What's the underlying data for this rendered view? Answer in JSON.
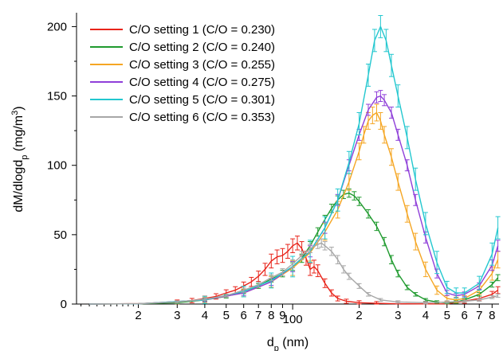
{
  "chart_data": {
    "type": "line",
    "x_scale": "log",
    "xlabel": {
      "main": "d",
      "sub": "p",
      "rest": " (nm)"
    },
    "ylabel": {
      "main": "dM/dlogd",
      "sub": "p",
      "mid": " (mg/m",
      "sup": "3",
      "end": ")"
    },
    "xlim": [
      10.5,
      860
    ],
    "ylim": [
      0,
      210
    ],
    "y_ticks": [
      0,
      50,
      100,
      150,
      200
    ],
    "x_ticks": [
      {
        "v": 20,
        "label": "2"
      },
      {
        "v": 30,
        "label": "3"
      },
      {
        "v": 40,
        "label": "4"
      },
      {
        "v": 50,
        "label": "5"
      },
      {
        "v": 60,
        "label": "6"
      },
      {
        "v": 70,
        "label": "7"
      },
      {
        "v": 80,
        "label": "8"
      },
      {
        "v": 90,
        "label": "9"
      },
      {
        "v": 100,
        "label": "100"
      },
      {
        "v": 200,
        "label": "2"
      },
      {
        "v": 300,
        "label": "3"
      },
      {
        "v": 400,
        "label": "4"
      },
      {
        "v": 500,
        "label": "5"
      },
      {
        "v": 600,
        "label": "6"
      },
      {
        "v": 700,
        "label": "7"
      },
      {
        "v": 800,
        "label": "8"
      }
    ],
    "legend_position": "top-left",
    "series": [
      {
        "name": "C/O setting 1 (C/O = 0.230)",
        "color": "#e8241a",
        "points": [
          [
            12,
            0
          ],
          [
            15,
            0.1
          ],
          [
            20,
            0.3
          ],
          [
            25,
            0.8
          ],
          [
            30,
            1.5
          ],
          [
            35,
            2.5
          ],
          [
            40,
            4
          ],
          [
            45,
            5.5
          ],
          [
            50,
            8
          ],
          [
            55,
            10
          ],
          [
            60,
            13
          ],
          [
            65,
            16
          ],
          [
            70,
            20
          ],
          [
            75,
            25
          ],
          [
            80,
            31
          ],
          [
            85,
            34
          ],
          [
            90,
            35
          ],
          [
            95,
            38
          ],
          [
            100,
            42
          ],
          [
            105,
            44
          ],
          [
            110,
            40
          ],
          [
            115,
            33
          ],
          [
            120,
            25
          ],
          [
            125,
            27
          ],
          [
            130,
            24
          ],
          [
            140,
            15
          ],
          [
            150,
            8
          ],
          [
            160,
            4
          ],
          [
            175,
            2
          ],
          [
            200,
            1
          ],
          [
            240,
            0.5
          ],
          [
            300,
            0.2
          ],
          [
            400,
            0.1
          ],
          [
            500,
            0.2
          ],
          [
            600,
            2
          ],
          [
            700,
            4
          ],
          [
            800,
            7
          ],
          [
            850,
            10
          ]
        ],
        "error": 5
      },
      {
        "name": "C/O setting 2 (C/O = 0.240)",
        "color": "#1f9a2e",
        "points": [
          [
            12,
            0
          ],
          [
            20,
            0.2
          ],
          [
            30,
            1
          ],
          [
            40,
            3
          ],
          [
            50,
            5.5
          ],
          [
            60,
            9
          ],
          [
            70,
            13
          ],
          [
            80,
            18
          ],
          [
            90,
            22
          ],
          [
            100,
            27
          ],
          [
            110,
            33
          ],
          [
            120,
            42
          ],
          [
            130,
            52
          ],
          [
            140,
            61
          ],
          [
            150,
            69
          ],
          [
            160,
            75
          ],
          [
            170,
            79
          ],
          [
            180,
            80
          ],
          [
            190,
            78
          ],
          [
            200,
            74
          ],
          [
            220,
            65
          ],
          [
            240,
            56
          ],
          [
            260,
            45
          ],
          [
            280,
            32
          ],
          [
            300,
            22
          ],
          [
            330,
            12
          ],
          [
            360,
            7
          ],
          [
            400,
            3
          ],
          [
            450,
            1.5
          ],
          [
            500,
            1
          ],
          [
            550,
            1.5
          ],
          [
            600,
            3
          ],
          [
            700,
            7
          ],
          [
            800,
            14
          ],
          [
            850,
            19
          ]
        ],
        "error": 3
      },
      {
        "name": "C/O setting 3 (C/O = 0.255)",
        "color": "#f5a623",
        "points": [
          [
            12,
            0
          ],
          [
            20,
            0.2
          ],
          [
            40,
            3
          ],
          [
            60,
            8
          ],
          [
            80,
            16
          ],
          [
            100,
            26
          ],
          [
            120,
            37
          ],
          [
            140,
            52
          ],
          [
            160,
            68
          ],
          [
            180,
            88
          ],
          [
            200,
            110
          ],
          [
            210,
            122
          ],
          [
            220,
            132
          ],
          [
            230,
            136
          ],
          [
            240,
            138
          ],
          [
            250,
            132
          ],
          [
            260,
            122
          ],
          [
            280,
            106
          ],
          [
            300,
            88
          ],
          [
            330,
            65
          ],
          [
            360,
            45
          ],
          [
            400,
            25
          ],
          [
            450,
            10
          ],
          [
            500,
            4
          ],
          [
            550,
            3
          ],
          [
            600,
            4
          ],
          [
            700,
            10
          ],
          [
            800,
            22
          ],
          [
            850,
            32
          ]
        ],
        "error": 6
      },
      {
        "name": "C/O setting 4 (C/O = 0.275)",
        "color": "#8f3fd9",
        "points": [
          [
            12,
            0
          ],
          [
            20,
            0.2
          ],
          [
            40,
            3
          ],
          [
            60,
            8
          ],
          [
            80,
            16
          ],
          [
            100,
            27
          ],
          [
            120,
            38
          ],
          [
            140,
            55
          ],
          [
            160,
            75
          ],
          [
            180,
            100
          ],
          [
            200,
            122
          ],
          [
            220,
            140
          ],
          [
            240,
            149
          ],
          [
            250,
            150
          ],
          [
            260,
            147
          ],
          [
            280,
            138
          ],
          [
            300,
            122
          ],
          [
            330,
            100
          ],
          [
            360,
            75
          ],
          [
            400,
            48
          ],
          [
            450,
            22
          ],
          [
            500,
            8
          ],
          [
            550,
            6
          ],
          [
            600,
            7
          ],
          [
            700,
            13
          ],
          [
            800,
            28
          ],
          [
            850,
            42
          ]
        ],
        "error": 4
      },
      {
        "name": "C/O setting 5 (C/O = 0.301)",
        "color": "#22c7cf",
        "points": [
          [
            12,
            0
          ],
          [
            20,
            0.2
          ],
          [
            40,
            3
          ],
          [
            60,
            9
          ],
          [
            80,
            17
          ],
          [
            100,
            27
          ],
          [
            120,
            38
          ],
          [
            140,
            55
          ],
          [
            160,
            75
          ],
          [
            180,
            102
          ],
          [
            200,
            130
          ],
          [
            220,
            165
          ],
          [
            235,
            190
          ],
          [
            250,
            200
          ],
          [
            265,
            190
          ],
          [
            280,
            172
          ],
          [
            300,
            150
          ],
          [
            330,
            120
          ],
          [
            360,
            90
          ],
          [
            400,
            58
          ],
          [
            450,
            30
          ],
          [
            500,
            12
          ],
          [
            550,
            8
          ],
          [
            600,
            8
          ],
          [
            700,
            15
          ],
          [
            800,
            36
          ],
          [
            850,
            55
          ]
        ],
        "error": 8
      },
      {
        "name": "C/O setting 6 (C/O = 0.353)",
        "color": "#a7a7a7",
        "points": [
          [
            12,
            0
          ],
          [
            20,
            0.3
          ],
          [
            30,
            1.5
          ],
          [
            40,
            3.5
          ],
          [
            50,
            6
          ],
          [
            60,
            10
          ],
          [
            70,
            14
          ],
          [
            80,
            19
          ],
          [
            90,
            23
          ],
          [
            100,
            29
          ],
          [
            110,
            35
          ],
          [
            120,
            40
          ],
          [
            130,
            43
          ],
          [
            135,
            44
          ],
          [
            140,
            42
          ],
          [
            150,
            38
          ],
          [
            160,
            32
          ],
          [
            170,
            25
          ],
          [
            180,
            20
          ],
          [
            200,
            13
          ],
          [
            220,
            7
          ],
          [
            250,
            3
          ],
          [
            300,
            1.5
          ],
          [
            400,
            1
          ],
          [
            500,
            1.5
          ],
          [
            600,
            2
          ],
          [
            700,
            3
          ],
          [
            800,
            5
          ],
          [
            850,
            6
          ]
        ],
        "error": 3
      }
    ]
  }
}
